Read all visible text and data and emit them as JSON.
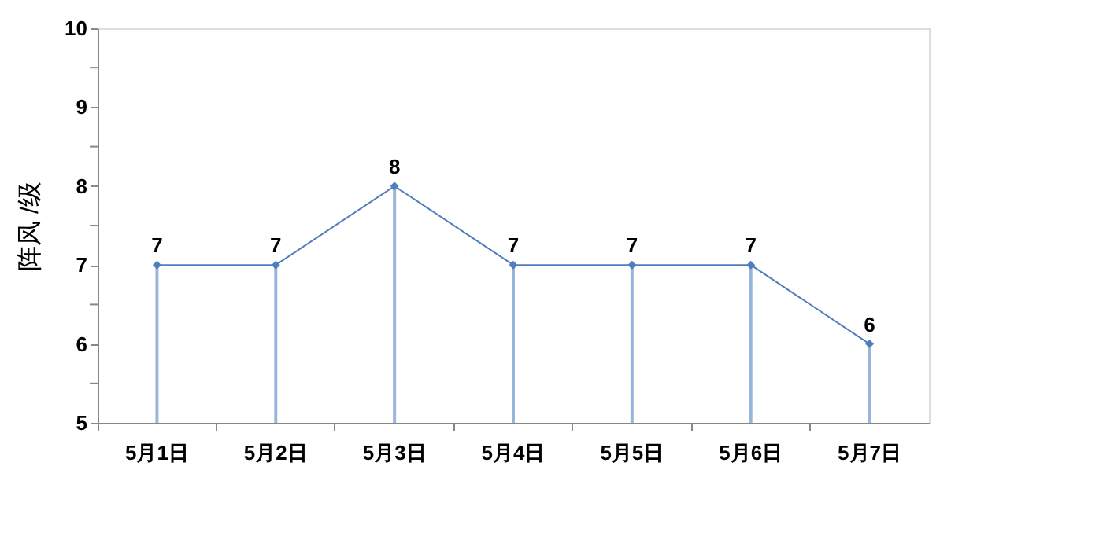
{
  "chart_data": {
    "type": "line",
    "ylabel": "阵风 /级",
    "categories": [
      "5月1日",
      "5月2日",
      "5月3日",
      "5月4日",
      "5月5日",
      "5月6日",
      "5月7日"
    ],
    "series": [
      {
        "color": "#4f7fbf",
        "values": [
          7,
          7,
          8,
          7,
          7,
          7,
          6
        ]
      }
    ],
    "ylim": [
      5,
      10
    ],
    "yticks": [
      5,
      {
        "value": 5.5,
        "label": null
      },
      6,
      {
        "value": 6.5,
        "label": null
      },
      7,
      {
        "value": 7.5,
        "label": null
      },
      8,
      {
        "value": 8.5,
        "label": null
      },
      9,
      {
        "value": 9.5,
        "label": null
      },
      10
    ],
    "data_labels": true,
    "marker": "diamond",
    "line_style": "solid",
    "grid": false
  }
}
